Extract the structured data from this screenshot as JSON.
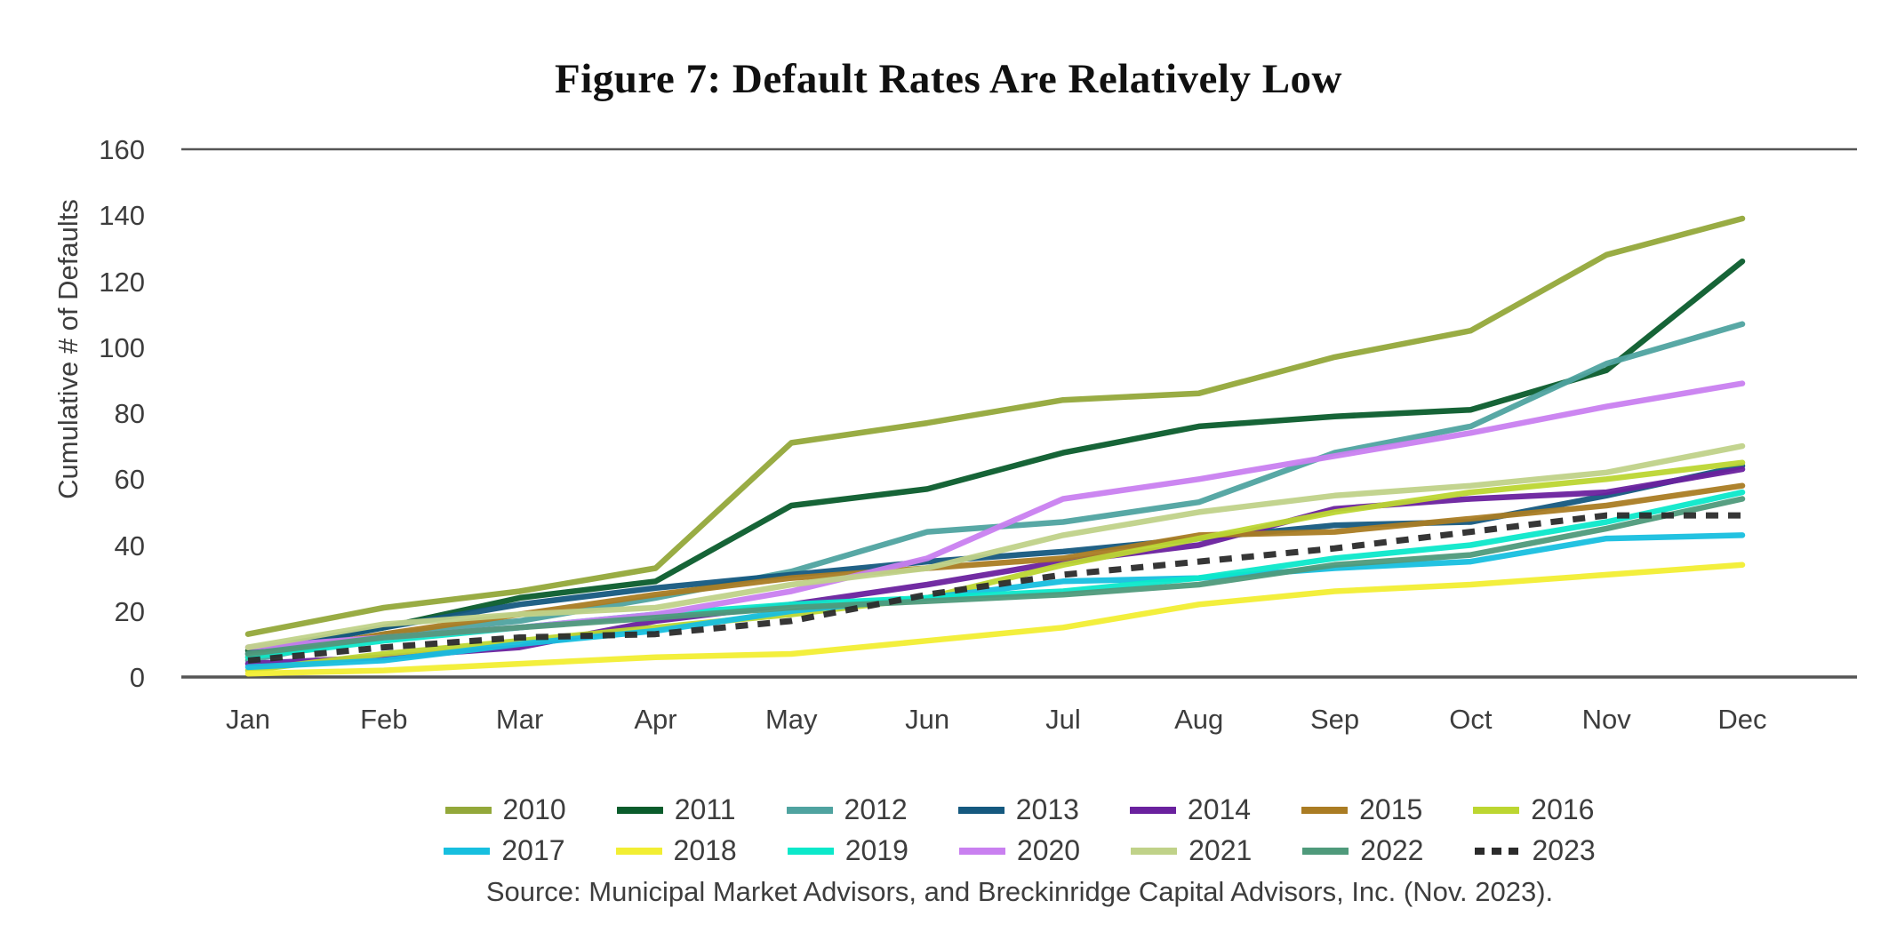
{
  "chart_data": {
    "type": "line",
    "title": "Figure 7: Default Rates Are Relatively Low",
    "ylabel": "Cumulative # of Defaults",
    "xlabel": "",
    "ylim": [
      0,
      160
    ],
    "yticks": [
      0,
      20,
      40,
      60,
      80,
      100,
      120,
      140,
      160
    ],
    "categories": [
      "Jan",
      "Feb",
      "Mar",
      "Apr",
      "May",
      "Jun",
      "Jul",
      "Aug",
      "Sep",
      "Oct",
      "Nov",
      "Dec"
    ],
    "grid": false,
    "legend_position": "bottom",
    "legend_rows": 2,
    "axis_line_color": "#555555",
    "text_color": "#3d3d3d",
    "series": [
      {
        "name": "2010",
        "color": "#93a83a",
        "dash": false,
        "values": [
          13,
          21,
          26,
          33,
          71,
          77,
          84,
          86,
          97,
          105,
          128,
          139
        ]
      },
      {
        "name": "2011",
        "color": "#0a5c2c",
        "dash": false,
        "values": [
          8,
          15,
          24,
          29,
          52,
          57,
          68,
          76,
          79,
          81,
          93,
          126
        ]
      },
      {
        "name": "2012",
        "color": "#4fa3a0",
        "dash": false,
        "values": [
          5,
          13,
          17,
          24,
          32,
          44,
          47,
          53,
          68,
          76,
          95,
          107
        ]
      },
      {
        "name": "2013",
        "color": "#15597f",
        "dash": false,
        "values": [
          7,
          15,
          22,
          27,
          31,
          35,
          38,
          42,
          46,
          47,
          55,
          64
        ]
      },
      {
        "name": "2014",
        "color": "#6a219e",
        "dash": false,
        "values": [
          4,
          6,
          9,
          17,
          22,
          28,
          35,
          40,
          51,
          54,
          56,
          63
        ]
      },
      {
        "name": "2015",
        "color": "#aa7c23",
        "dash": false,
        "values": [
          6,
          13,
          19,
          25,
          30,
          33,
          36,
          43,
          44,
          48,
          52,
          58
        ]
      },
      {
        "name": "2016",
        "color": "#bcd631",
        "dash": false,
        "values": [
          2,
          7,
          11,
          15,
          19,
          24,
          34,
          42,
          50,
          56,
          60,
          65
        ]
      },
      {
        "name": "2017",
        "color": "#17bfdf",
        "dash": false,
        "values": [
          3,
          5,
          10,
          14,
          20,
          24,
          29,
          30,
          33,
          35,
          42,
          43
        ]
      },
      {
        "name": "2018",
        "color": "#f2ee33",
        "dash": false,
        "values": [
          1,
          2,
          4,
          6,
          7,
          11,
          15,
          22,
          26,
          28,
          31,
          34
        ]
      },
      {
        "name": "2019",
        "color": "#0ce8ca",
        "dash": false,
        "values": [
          6,
          11,
          15,
          19,
          22,
          24,
          26,
          30,
          36,
          40,
          47,
          56
        ]
      },
      {
        "name": "2020",
        "color": "#c980f0",
        "dash": false,
        "values": [
          9,
          12,
          15,
          19,
          26,
          36,
          54,
          60,
          67,
          74,
          82,
          89
        ]
      },
      {
        "name": "2021",
        "color": "#c0d289",
        "dash": false,
        "values": [
          9,
          16,
          19,
          21,
          28,
          33,
          43,
          50,
          55,
          58,
          62,
          70
        ]
      },
      {
        "name": "2022",
        "color": "#4f9a7b",
        "dash": false,
        "values": [
          7,
          12,
          15,
          18,
          21,
          23,
          25,
          28,
          34,
          37,
          45,
          54
        ]
      },
      {
        "name": "2023",
        "color": "#2b2b2b",
        "dash": true,
        "values": [
          5,
          9,
          12,
          13,
          17,
          25,
          31,
          35,
          39,
          44,
          49,
          49
        ]
      }
    ],
    "source": "Source: Municipal Market Advisors, and Breckinridge Capital Advisors, Inc. (Nov. 2023)."
  }
}
